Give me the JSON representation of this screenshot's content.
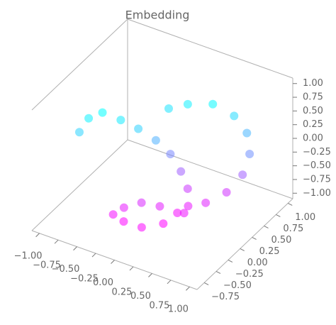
{
  "chart_data": {
    "type": "scatter3d",
    "title": "Embedding",
    "x": [
      -0.85,
      -0.79,
      -0.67,
      -0.49,
      -0.32,
      -0.15,
      -0.02,
      0.12,
      0.21,
      0.28,
      0.2,
      0.03,
      -0.15,
      -0.32,
      -0.4,
      -0.26,
      -0.02,
      0.14,
      0.29,
      0.45,
      0.6,
      0.75,
      0.78,
      0.68,
      0.51,
      0.29,
      0.02,
      -0.17
    ],
    "y": [
      -0.3,
      -0.2,
      -0.1,
      0.0,
      0.1,
      0.2,
      0.3,
      0.3,
      0.3,
      0.2,
      0.1,
      0.0,
      -0.1,
      -0.2,
      -0.3,
      -0.3,
      -0.3,
      -0.1,
      0.1,
      0.3,
      0.5,
      0.6,
      0.7,
      0.8,
      0.8,
      0.7,
      0.6,
      0.5
    ],
    "z": [
      0.32,
      0.52,
      0.6,
      0.47,
      0.31,
      0.1,
      -0.17,
      -0.42,
      -0.69,
      -0.89,
      -0.97,
      -0.85,
      -0.79,
      -0.88,
      -0.96,
      -1.02,
      -1.01,
      -1.03,
      -0.93,
      -0.83,
      -0.73,
      -0.42,
      -0.11,
      0.14,
      0.37,
      0.56,
      0.51,
      0.42
    ],
    "colormap": [
      "#ff00ff",
      "#00ffff"
    ],
    "xlim": [
      -1.1,
      1.1
    ],
    "ylim": [
      -0.9,
      1.1
    ],
    "zlim": [
      -1.1,
      1.1
    ],
    "xticks": [
      {
        "value": -1,
        "label": "−1.00"
      },
      {
        "value": -0.75,
        "label": "−0.75"
      },
      {
        "value": -0.5,
        "label": "−0.50"
      },
      {
        "value": -0.25,
        "label": "−0.25"
      },
      {
        "value": 0,
        "label": "0.00"
      },
      {
        "value": 0.25,
        "label": "0.25"
      },
      {
        "value": 0.5,
        "label": "0.50"
      },
      {
        "value": 0.75,
        "label": "0.75"
      },
      {
        "value": 1,
        "label": "1.00"
      }
    ],
    "yticks": [
      {
        "value": -0.75,
        "label": "−0.75"
      },
      {
        "value": -0.5,
        "label": "−0.50"
      },
      {
        "value": -0.25,
        "label": "−0.25"
      },
      {
        "value": 0,
        "label": "0.00"
      },
      {
        "value": 0.25,
        "label": "0.25"
      },
      {
        "value": 0.5,
        "label": "0.50"
      },
      {
        "value": 0.75,
        "label": "0.75"
      },
      {
        "value": 1,
        "label": "1.00"
      }
    ],
    "zticks": [
      {
        "value": -1,
        "label": "−1.00"
      },
      {
        "value": -0.75,
        "label": "−0.75"
      },
      {
        "value": -0.5,
        "label": "−0.50"
      },
      {
        "value": -0.25,
        "label": "−0.25"
      },
      {
        "value": 0,
        "label": "0.00"
      },
      {
        "value": 0.25,
        "label": "0.25"
      },
      {
        "value": 0.5,
        "label": "0.50"
      },
      {
        "value": 0.75,
        "label": "0.75"
      },
      {
        "value": 1,
        "label": "1.00"
      }
    ]
  }
}
